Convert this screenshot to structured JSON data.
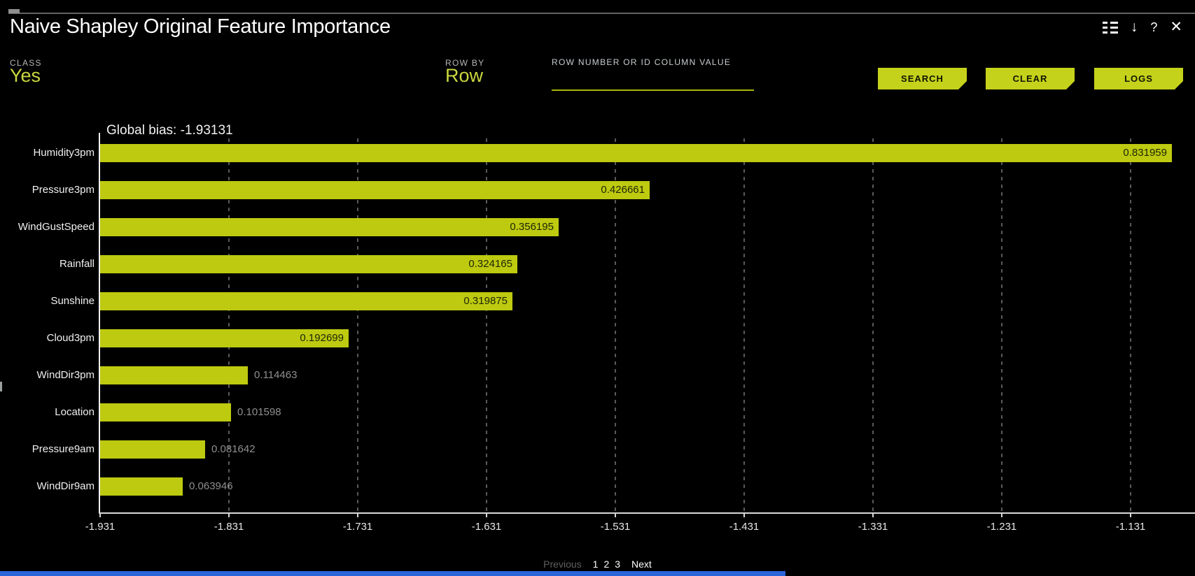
{
  "window": {
    "title": "Naive Shapley Original Feature Importance"
  },
  "icons": {
    "download": "↓",
    "help": "?",
    "close": "✕"
  },
  "controls": {
    "class_label": "CLASS",
    "class_value": "Yes",
    "row_by_label": "ROW BY",
    "row_by_value": "Row",
    "row_input_label": "ROW NUMBER OR ID COLUMN VALUE",
    "row_input_value": "",
    "buttons": {
      "search": "SEARCH",
      "clear": "CLEAR",
      "logs": "LOGS"
    }
  },
  "chart_data": {
    "type": "bar",
    "orientation": "horizontal",
    "title": "Global bias: -1.93131",
    "global_bias": -1.93131,
    "categories": [
      "Humidity3pm",
      "Pressure3pm",
      "WindGustSpeed",
      "Rainfall",
      "Sunshine",
      "Cloud3pm",
      "WindDir3pm",
      "Location",
      "Pressure9am",
      "WindDir9am"
    ],
    "values": [
      0.831959,
      0.426661,
      0.356195,
      0.324165,
      0.319875,
      0.192699,
      0.114463,
      0.101598,
      0.081642,
      0.063946
    ],
    "value_labels": [
      "0.831959",
      "0.426661",
      "0.356195",
      "0.324165",
      "0.319875",
      "0.192699",
      "0.114463",
      "0.101598",
      "0.081642",
      "0.063946"
    ],
    "x_ticks": [
      "-1.931",
      "-1.831",
      "-1.731",
      "-1.631",
      "-1.531",
      "-1.431",
      "-1.331",
      "-1.231",
      "-1.131"
    ],
    "x_min": -1.931,
    "x_tick_step": 0.1,
    "grid": "dashed-vertical",
    "bar_color": "#bdca10",
    "xlabel": "",
    "ylabel": ""
  },
  "pagination": {
    "previous": "Previous",
    "pages": [
      "1",
      "2",
      "3"
    ],
    "next": "Next"
  },
  "colors": {
    "background": "#000000",
    "accent": "#c5d21b",
    "bar": "#bdca10",
    "class_value_text": "#c9d640",
    "muted_text": "#8f8f8f",
    "bottom_strip": "#2a65d9"
  }
}
